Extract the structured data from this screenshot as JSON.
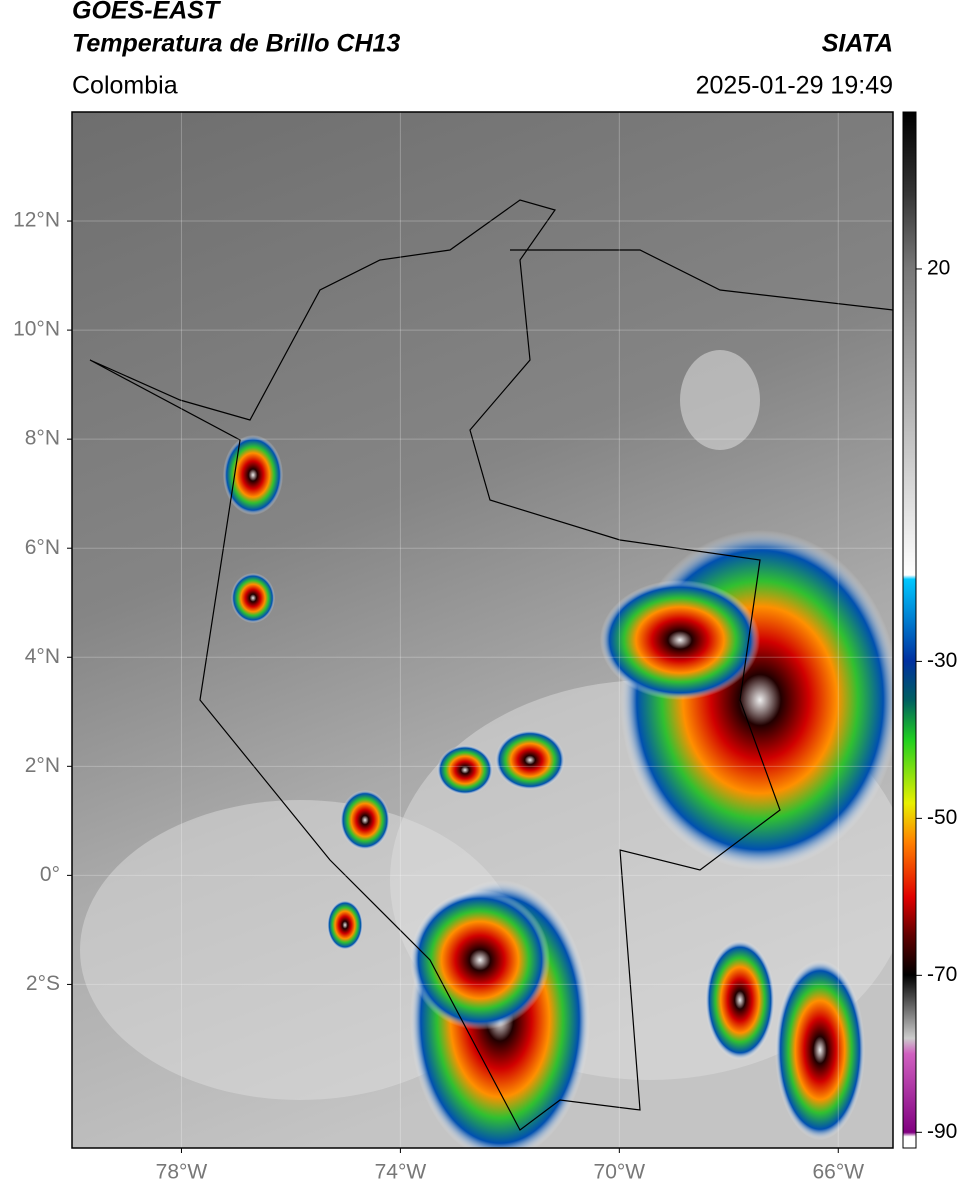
{
  "header": {
    "title": "GOES-EAST",
    "subtitle": "Temperatura de Brillo CH13",
    "region": "Colombia",
    "source": "SIATA",
    "timestamp": "2025-01-29 19:49"
  },
  "chart_data": {
    "type": "map",
    "xlim": [
      -80,
      -65
    ],
    "ylim": [
      -5,
      14
    ],
    "xticks": [
      {
        "value": -78,
        "label": "78°W"
      },
      {
        "value": -74,
        "label": "74°W"
      },
      {
        "value": -70,
        "label": "70°W"
      },
      {
        "value": -66,
        "label": "66°W"
      }
    ],
    "yticks": [
      {
        "value": 12,
        "label": "12°N"
      },
      {
        "value": 10,
        "label": "10°N"
      },
      {
        "value": 8,
        "label": "8°N"
      },
      {
        "value": 6,
        "label": "6°N"
      },
      {
        "value": 4,
        "label": "4°N"
      },
      {
        "value": 2,
        "label": "2°N"
      },
      {
        "value": 0,
        "label": "0°"
      },
      {
        "value": -2,
        "label": "2°S"
      }
    ],
    "grid": true,
    "colorbar": {
      "lim": [
        -92,
        40
      ],
      "ticks": [
        20,
        -30,
        -50,
        -70,
        -90
      ]
    }
  }
}
